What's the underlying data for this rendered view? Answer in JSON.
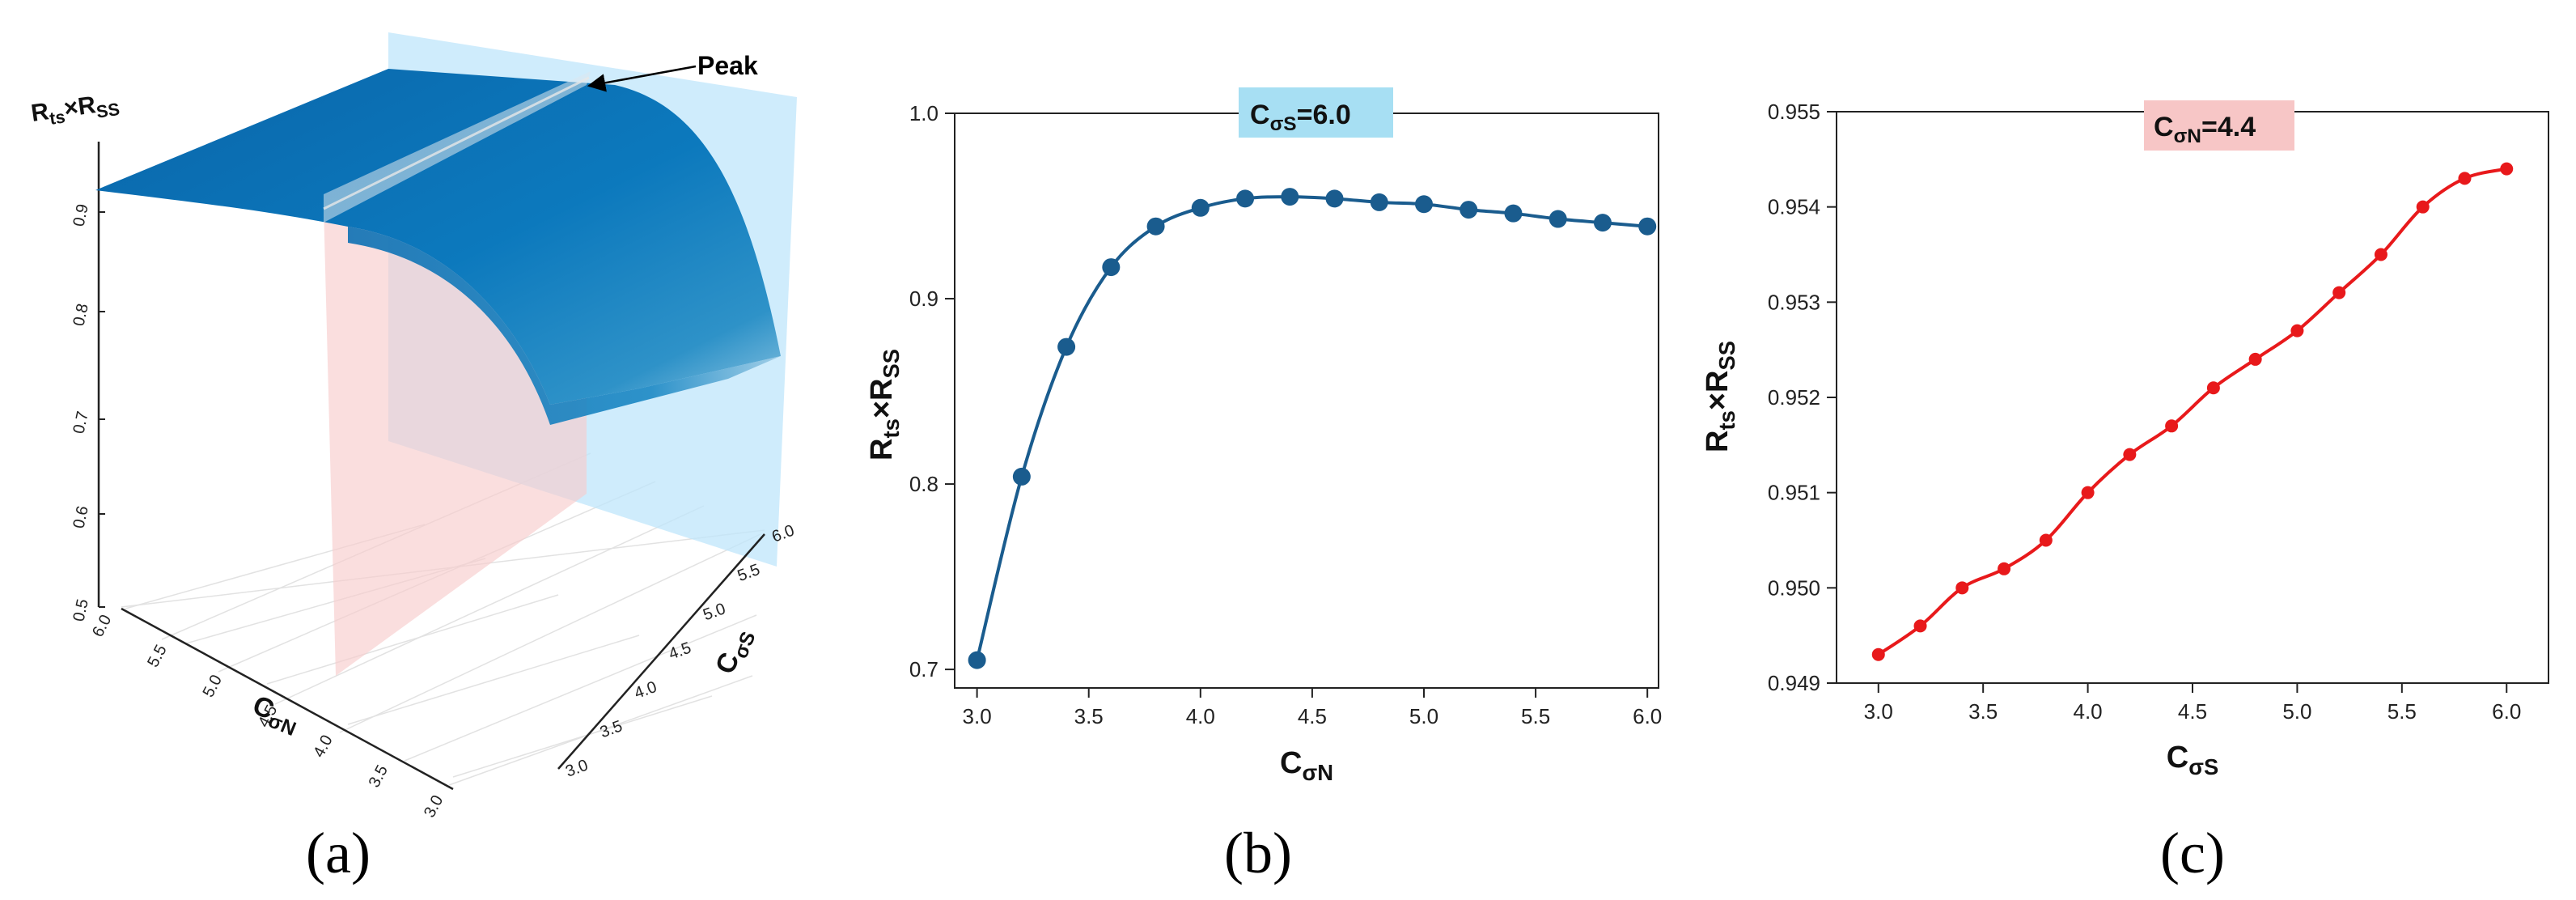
{
  "panel_labels": [
    "(a)",
    "(b)",
    "(c)"
  ],
  "chart_data": [
    {
      "type": "surface",
      "panel": "(a)",
      "zlabel_main": "R",
      "zlabel_sub1": "ts",
      "zlabel_mid": "×R",
      "zlabel_sub2": "SS",
      "xlabel_main": "C",
      "xlabel_sub": "σN",
      "ylabel_main": "C",
      "ylabel_sub": "σS",
      "x_ticks": [
        "6.0",
        "5.5",
        "5.0",
        "4.5",
        "4.0",
        "3.5",
        "3.0"
      ],
      "y_ticks": [
        "3.0",
        "3.5",
        "4.0",
        "4.5",
        "5.0",
        "5.5",
        "6.0"
      ],
      "z_ticks": [
        "0.5",
        "0.6",
        "0.7",
        "0.8",
        "0.9"
      ],
      "annotation": "Peak",
      "surface_color": "#0b6fb0",
      "plane_colors": {
        "sigma_s_plane": "#bfe6fb",
        "sigma_n_plane": "#f8cccc"
      }
    },
    {
      "type": "line",
      "panel": "(b)",
      "box_label_main": "C",
      "box_label_sub": "σS",
      "box_label_value": "=6.0",
      "box_color": "#a7dff3",
      "xlabel_main": "C",
      "xlabel_sub": "σN",
      "ylabel_main": "R",
      "ylabel_sub1": "ts",
      "ylabel_mid": "×R",
      "ylabel_sub2": "SS",
      "xlim": [
        2.9,
        6.05
      ],
      "ylim": [
        0.69,
        1.0
      ],
      "x_ticks": [
        "3.0",
        "3.5",
        "4.0",
        "4.5",
        "5.0",
        "5.5",
        "6.0"
      ],
      "y_ticks": [
        "0.7",
        "0.8",
        "0.9",
        "1.0"
      ],
      "color": "#1a5c8e",
      "series": [
        {
          "x": [
            3.0,
            3.2,
            3.4,
            3.6,
            3.8,
            4.0,
            4.2,
            4.4,
            4.6,
            4.8,
            5.0,
            5.2,
            5.4,
            5.6,
            5.8,
            6.0
          ],
          "y": [
            0.705,
            0.804,
            0.874,
            0.917,
            0.939,
            0.949,
            0.954,
            0.955,
            0.954,
            0.952,
            0.951,
            0.948,
            0.946,
            0.943,
            0.941,
            0.939
          ]
        }
      ]
    },
    {
      "type": "line",
      "panel": "(c)",
      "box_label_main": "C",
      "box_label_sub": "σN",
      "box_label_value": "=4.4",
      "box_color": "#f7c6c6",
      "xlabel_main": "C",
      "xlabel_sub": "σS",
      "ylabel_main": "R",
      "ylabel_sub1": "ts",
      "ylabel_mid": "×R",
      "ylabel_sub2": "SS",
      "xlim": [
        2.8,
        6.2
      ],
      "ylim": [
        0.949,
        0.955
      ],
      "x_ticks": [
        "3.0",
        "3.5",
        "4.0",
        "4.5",
        "5.0",
        "5.5",
        "6.0"
      ],
      "y_ticks": [
        "0.949",
        "0.950",
        "0.951",
        "0.952",
        "0.953",
        "0.954",
        "0.955"
      ],
      "color": "#e8191b",
      "series": [
        {
          "x": [
            3.0,
            3.2,
            3.4,
            3.6,
            3.8,
            4.0,
            4.2,
            4.4,
            4.6,
            4.8,
            5.0,
            5.2,
            5.4,
            5.6,
            5.8,
            6.0
          ],
          "y": [
            0.9493,
            0.9496,
            0.95,
            0.9502,
            0.9505,
            0.951,
            0.9514,
            0.9517,
            0.9521,
            0.9524,
            0.9527,
            0.9531,
            0.9535,
            0.954,
            0.9543,
            0.9544
          ]
        }
      ]
    }
  ]
}
